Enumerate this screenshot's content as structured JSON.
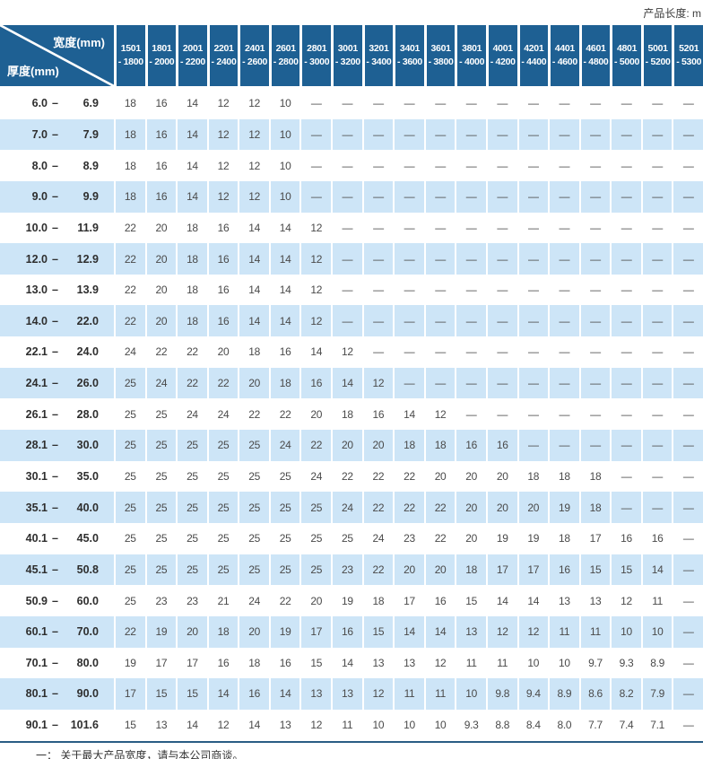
{
  "topbar": {
    "product_length": "产品长度: m"
  },
  "table": {
    "corner": {
      "width_label": "宽度(mm)",
      "thickness_label": "厚度(mm)"
    },
    "columns": [
      {
        "from": "1501",
        "to": "- 1800"
      },
      {
        "from": "1801",
        "to": "- 2000"
      },
      {
        "from": "2001",
        "to": "- 2200"
      },
      {
        "from": "2201",
        "to": "- 2400"
      },
      {
        "from": "2401",
        "to": "- 2600"
      },
      {
        "from": "2601",
        "to": "- 2800"
      },
      {
        "from": "2801",
        "to": "- 3000"
      },
      {
        "from": "3001",
        "to": "- 3200"
      },
      {
        "from": "3201",
        "to": "- 3400"
      },
      {
        "from": "3401",
        "to": "- 3600"
      },
      {
        "from": "3601",
        "to": "- 3800"
      },
      {
        "from": "3801",
        "to": "- 4000"
      },
      {
        "from": "4001",
        "to": "- 4200"
      },
      {
        "from": "4201",
        "to": "- 4400"
      },
      {
        "from": "4401",
        "to": "- 4600"
      },
      {
        "from": "4601",
        "to": "- 4800"
      },
      {
        "from": "4801",
        "to": "- 5000"
      },
      {
        "from": "5001",
        "to": "- 5200"
      },
      {
        "from": "5201",
        "to": "- 5300"
      }
    ],
    "rows": [
      {
        "from": "6.0",
        "to": "6.9",
        "values": [
          "18",
          "16",
          "14",
          "12",
          "12",
          "10",
          "—",
          "—",
          "—",
          "—",
          "—",
          "—",
          "—",
          "—",
          "—",
          "—",
          "—",
          "—",
          "—"
        ]
      },
      {
        "from": "7.0",
        "to": "7.9",
        "values": [
          "18",
          "16",
          "14",
          "12",
          "12",
          "10",
          "—",
          "—",
          "—",
          "—",
          "—",
          "—",
          "—",
          "—",
          "—",
          "—",
          "—",
          "—",
          "—"
        ]
      },
      {
        "from": "8.0",
        "to": "8.9",
        "values": [
          "18",
          "16",
          "14",
          "12",
          "12",
          "10",
          "—",
          "—",
          "—",
          "—",
          "—",
          "—",
          "—",
          "—",
          "—",
          "—",
          "—",
          "—",
          "—"
        ]
      },
      {
        "from": "9.0",
        "to": "9.9",
        "values": [
          "18",
          "16",
          "14",
          "12",
          "12",
          "10",
          "—",
          "—",
          "—",
          "—",
          "—",
          "—",
          "—",
          "—",
          "—",
          "—",
          "—",
          "—",
          "—"
        ]
      },
      {
        "from": "10.0",
        "to": "11.9",
        "values": [
          "22",
          "20",
          "18",
          "16",
          "14",
          "14",
          "12",
          "—",
          "—",
          "—",
          "—",
          "—",
          "—",
          "—",
          "—",
          "—",
          "—",
          "—",
          "—"
        ]
      },
      {
        "from": "12.0",
        "to": "12.9",
        "values": [
          "22",
          "20",
          "18",
          "16",
          "14",
          "14",
          "12",
          "—",
          "—",
          "—",
          "—",
          "—",
          "—",
          "—",
          "—",
          "—",
          "—",
          "—",
          "—"
        ]
      },
      {
        "from": "13.0",
        "to": "13.9",
        "values": [
          "22",
          "20",
          "18",
          "16",
          "14",
          "14",
          "12",
          "—",
          "—",
          "—",
          "—",
          "—",
          "—",
          "—",
          "—",
          "—",
          "—",
          "—",
          "—"
        ]
      },
      {
        "from": "14.0",
        "to": "22.0",
        "values": [
          "22",
          "20",
          "18",
          "16",
          "14",
          "14",
          "12",
          "—",
          "—",
          "—",
          "—",
          "—",
          "—",
          "—",
          "—",
          "—",
          "—",
          "—",
          "—"
        ]
      },
      {
        "from": "22.1",
        "to": "24.0",
        "values": [
          "24",
          "22",
          "22",
          "20",
          "18",
          "16",
          "14",
          "12",
          "—",
          "—",
          "—",
          "—",
          "—",
          "—",
          "—",
          "—",
          "—",
          "—",
          "—"
        ]
      },
      {
        "from": "24.1",
        "to": "26.0",
        "values": [
          "25",
          "24",
          "22",
          "22",
          "20",
          "18",
          "16",
          "14",
          "12",
          "—",
          "—",
          "—",
          "—",
          "—",
          "—",
          "—",
          "—",
          "—",
          "—"
        ]
      },
      {
        "from": "26.1",
        "to": "28.0",
        "values": [
          "25",
          "25",
          "24",
          "24",
          "22",
          "22",
          "20",
          "18",
          "16",
          "14",
          "12",
          "—",
          "—",
          "—",
          "—",
          "—",
          "—",
          "—",
          "—"
        ]
      },
      {
        "from": "28.1",
        "to": "30.0",
        "values": [
          "25",
          "25",
          "25",
          "25",
          "25",
          "24",
          "22",
          "20",
          "20",
          "18",
          "18",
          "16",
          "16",
          "—",
          "—",
          "—",
          "—",
          "—",
          "—"
        ]
      },
      {
        "from": "30.1",
        "to": "35.0",
        "values": [
          "25",
          "25",
          "25",
          "25",
          "25",
          "25",
          "24",
          "22",
          "22",
          "22",
          "20",
          "20",
          "20",
          "18",
          "18",
          "18",
          "—",
          "—",
          "—"
        ]
      },
      {
        "from": "35.1",
        "to": "40.0",
        "values": [
          "25",
          "25",
          "25",
          "25",
          "25",
          "25",
          "25",
          "24",
          "22",
          "22",
          "22",
          "20",
          "20",
          "20",
          "19",
          "18",
          "—",
          "—",
          "—"
        ]
      },
      {
        "from": "40.1",
        "to": "45.0",
        "values": [
          "25",
          "25",
          "25",
          "25",
          "25",
          "25",
          "25",
          "25",
          "24",
          "23",
          "22",
          "20",
          "19",
          "19",
          "18",
          "17",
          "16",
          "16",
          "—"
        ]
      },
      {
        "from": "45.1",
        "to": "50.8",
        "values": [
          "25",
          "25",
          "25",
          "25",
          "25",
          "25",
          "25",
          "23",
          "22",
          "20",
          "20",
          "18",
          "17",
          "17",
          "16",
          "15",
          "15",
          "14",
          "—"
        ]
      },
      {
        "from": "50.9",
        "to": "60.0",
        "values": [
          "25",
          "23",
          "23",
          "21",
          "24",
          "22",
          "20",
          "19",
          "18",
          "17",
          "16",
          "15",
          "14",
          "14",
          "13",
          "13",
          "12",
          "11",
          "—"
        ]
      },
      {
        "from": "60.1",
        "to": "70.0",
        "values": [
          "22",
          "19",
          "20",
          "18",
          "20",
          "19",
          "17",
          "16",
          "15",
          "14",
          "14",
          "13",
          "12",
          "12",
          "11",
          "11",
          "10",
          "10",
          "—"
        ]
      },
      {
        "from": "70.1",
        "to": "80.0",
        "values": [
          "19",
          "17",
          "17",
          "16",
          "18",
          "16",
          "15",
          "14",
          "13",
          "13",
          "12",
          "11",
          "11",
          "10",
          "10",
          "9.7",
          "9.3",
          "8.9",
          "—"
        ]
      },
      {
        "from": "80.1",
        "to": "90.0",
        "values": [
          "17",
          "15",
          "15",
          "14",
          "16",
          "14",
          "13",
          "13",
          "12",
          "11",
          "11",
          "10",
          "9.8",
          "9.4",
          "8.9",
          "8.6",
          "8.2",
          "7.9",
          "—"
        ]
      },
      {
        "from": "90.1",
        "to": "101.6",
        "values": [
          "15",
          "13",
          "14",
          "12",
          "14",
          "13",
          "12",
          "11",
          "10",
          "10",
          "10",
          "9.3",
          "8.8",
          "8.4",
          "8.0",
          "7.7",
          "7.4",
          "7.1",
          "—"
        ]
      }
    ]
  },
  "footnote": "一： 关于最大产品宽度，请与本公司商谈。",
  "colors": {
    "header_bg": "#1e6093",
    "stripe_bg": "#cde5f7",
    "divider": "#2a5d84",
    "cell_text": "#4a4a4a",
    "header_text": "#ffffff"
  }
}
